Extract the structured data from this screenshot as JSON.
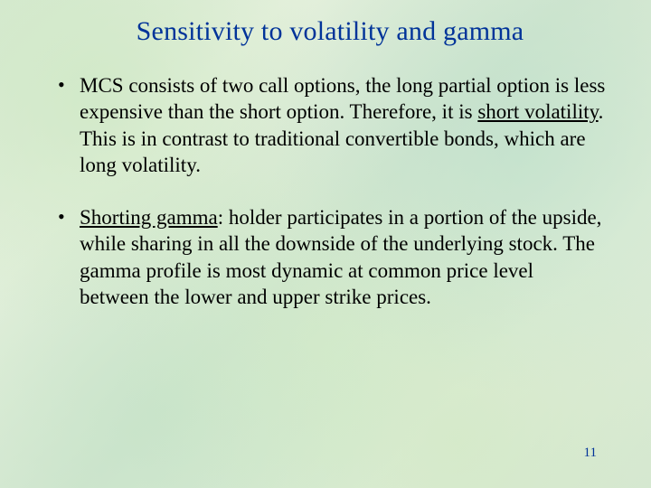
{
  "background_color": "#dcedd6",
  "title": {
    "text": "Sensitivity to volatility and gamma",
    "color": "#003399",
    "fontsize": 30
  },
  "body": {
    "color": "#000000",
    "fontsize": 23,
    "bullets": [
      {
        "pre": "MCS consists of two call options, the long partial option is less expensive than the short option. Therefore, it is ",
        "emph": "short volatility",
        "post": ". This is in contrast to traditional convertible bonds, which are long volatility."
      },
      {
        "pre": "",
        "emph": "Shorting gamma",
        "post": ": holder participates in a portion of the upside, while sharing in all the downside of the underlying stock. The gamma profile is most dynamic at common price level between the lower and upper strike prices."
      }
    ]
  },
  "page_number": {
    "text": "11",
    "color": "#003399",
    "fontsize": 15
  }
}
